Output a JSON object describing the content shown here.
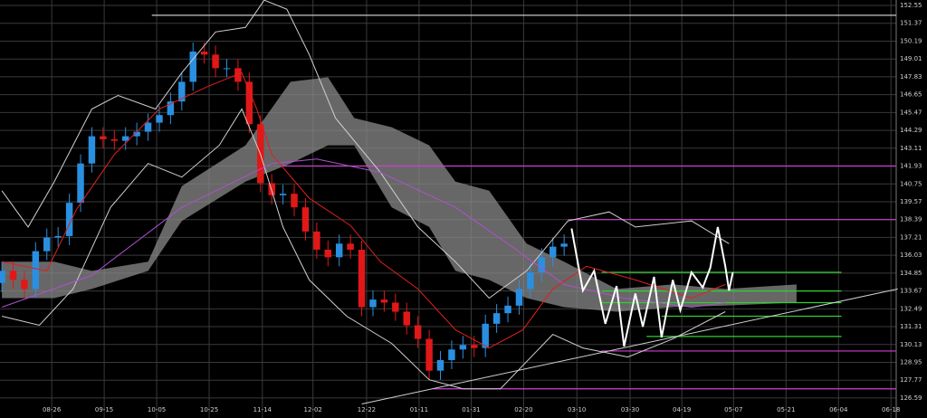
{
  "chart_data": {
    "type": "candlestick",
    "x": [
      0,
      3,
      6,
      9,
      12,
      15,
      18,
      21,
      24,
      27,
      30,
      33,
      36,
      39,
      42,
      45,
      48,
      51,
      54,
      57,
      60,
      63,
      66,
      69,
      72,
      75,
      78,
      81,
      84,
      87,
      90,
      93,
      96,
      99,
      102,
      105,
      108,
      111,
      114,
      117,
      120,
      123,
      126,
      129,
      132,
      135,
      138,
      141,
      144,
      147,
      150
    ],
    "open": [
      134.2,
      135.0,
      134.4,
      133.8,
      136.3,
      137.2,
      137.3,
      139.5,
      142.1,
      143.9,
      143.7,
      143.6,
      143.9,
      144.2,
      144.8,
      145.3,
      146.2,
      147.5,
      149.5,
      149.3,
      148.4,
      148.4,
      147.5,
      144.7,
      140.8,
      140.0,
      140.1,
      139.2,
      137.6,
      136.4,
      135.9,
      136.8,
      136.4,
      132.6,
      133.1,
      132.9,
      132.3,
      131.4,
      130.5,
      128.4,
      129.1,
      129.8,
      130.1,
      129.9,
      131.5,
      132.2,
      132.7,
      133.8,
      134.9,
      135.9,
      136.6
    ],
    "high": [
      135.6,
      135.6,
      135.0,
      136.9,
      137.8,
      137.9,
      140.1,
      142.7,
      144.5,
      144.5,
      144.3,
      144.5,
      144.8,
      145.4,
      145.9,
      146.8,
      148.1,
      150.1,
      150.1,
      149.9,
      149.0,
      149.0,
      148.1,
      145.3,
      141.4,
      140.7,
      140.7,
      139.8,
      138.2,
      137.0,
      137.4,
      137.4,
      137.0,
      133.7,
      133.7,
      133.5,
      132.9,
      132.0,
      131.1,
      129.7,
      130.4,
      130.7,
      130.7,
      132.1,
      132.8,
      133.3,
      134.4,
      135.5,
      136.5,
      137.2,
      137.4
    ],
    "low": [
      133.6,
      133.8,
      133.2,
      133.2,
      135.7,
      136.6,
      136.7,
      138.9,
      141.5,
      143.1,
      143.0,
      143.0,
      143.3,
      143.6,
      144.2,
      144.7,
      145.6,
      146.9,
      148.7,
      147.8,
      147.8,
      146.9,
      144.1,
      140.2,
      139.4,
      139.4,
      138.6,
      137.0,
      135.8,
      135.3,
      135.3,
      135.8,
      132.0,
      132.0,
      132.3,
      131.7,
      130.8,
      129.9,
      127.8,
      127.8,
      128.5,
      129.2,
      129.3,
      129.3,
      130.9,
      131.6,
      132.1,
      133.2,
      134.3,
      135.3,
      136.0
    ],
    "close": [
      135.0,
      134.4,
      133.8,
      136.3,
      137.2,
      137.3,
      139.5,
      142.1,
      143.9,
      143.7,
      143.6,
      143.9,
      144.2,
      144.8,
      145.3,
      146.2,
      147.5,
      149.5,
      149.3,
      148.4,
      148.4,
      147.5,
      144.7,
      140.8,
      140.0,
      140.1,
      139.2,
      137.6,
      136.4,
      135.9,
      136.8,
      136.4,
      132.6,
      133.1,
      132.9,
      132.3,
      131.4,
      130.5,
      128.4,
      129.1,
      129.8,
      130.1,
      129.9,
      131.5,
      132.2,
      132.7,
      133.8,
      134.9,
      135.9,
      136.6,
      136.8
    ],
    "up_color": "#2a8fe0",
    "down_color": "#e01818",
    "cloud": {
      "color": "#8a8a8a",
      "x": [
        0,
        14,
        24,
        39,
        48,
        65,
        77,
        87,
        94,
        104,
        114,
        121,
        130,
        140,
        150,
        164,
        179,
        193,
        212
      ],
      "upper": [
        135.6,
        135.6,
        135.0,
        135.6,
        140.6,
        143.3,
        147.5,
        147.8,
        145.1,
        144.5,
        143.3,
        140.9,
        140.3,
        136.8,
        135.6,
        133.8,
        134.1,
        133.8,
        134.1
      ],
      "lower": [
        133.2,
        133.2,
        133.8,
        135.0,
        138.3,
        140.9,
        142.1,
        143.3,
        143.3,
        139.2,
        137.9,
        135.0,
        134.4,
        133.2,
        132.6,
        132.3,
        132.6,
        132.7,
        132.9
      ]
    },
    "overlays": [
      {
        "color": "#d0d0d0",
        "x": [
          0,
          7,
          14,
          24,
          31,
          41,
          48,
          57,
          65,
          70,
          76,
          82,
          89,
          101,
          111,
          121,
          130,
          140,
          151,
          162,
          169,
          184,
          194
        ],
        "values": [
          140.3,
          137.9,
          140.9,
          145.7,
          146.6,
          145.7,
          148.1,
          150.8,
          151.1,
          152.9,
          152.3,
          149.3,
          145.1,
          141.5,
          137.9,
          135.6,
          133.2,
          135.0,
          138.3,
          138.9,
          137.9,
          138.3,
          136.8
        ]
      },
      {
        "color": "#d0d0d0",
        "x": [
          0,
          10,
          19,
          29,
          39,
          48,
          58,
          64,
          69,
          75,
          82,
          92,
          104,
          114,
          123,
          133,
          140,
          147,
          155,
          167,
          179,
          193
        ],
        "values": [
          132.0,
          131.4,
          133.8,
          139.2,
          142.1,
          141.2,
          143.3,
          145.7,
          142.7,
          137.9,
          134.4,
          132.0,
          130.2,
          127.8,
          127.2,
          127.2,
          129.0,
          130.8,
          129.9,
          129.3,
          130.5,
          132.3
        ]
      },
      {
        "color": "#b050d0",
        "x": [
          0,
          24,
          48,
          72,
          84,
          101,
          121,
          135,
          150,
          166,
          184,
          193
        ],
        "values": [
          132.6,
          134.7,
          139.2,
          142.1,
          142.4,
          141.5,
          139.2,
          136.8,
          134.1,
          133.2,
          132.6,
          132.9
        ]
      },
      {
        "color": "#e02020",
        "x": [
          0,
          12,
          20,
          30,
          42,
          55,
          64,
          68,
          72,
          82,
          93,
          101,
          111,
          121,
          130,
          139,
          147,
          156,
          169,
          184,
          193
        ],
        "values": [
          135.6,
          135.0,
          139.1,
          142.7,
          145.7,
          147.2,
          148.1,
          145.7,
          142.7,
          139.8,
          138.0,
          135.6,
          133.8,
          131.1,
          129.9,
          131.1,
          133.8,
          135.3,
          134.4,
          133.2,
          134.1
        ]
      },
      {
        "color": "#ffffff",
        "x": [
          152,
          155,
          158,
          161,
          164,
          166,
          169,
          171,
          174,
          176,
          179,
          181,
          184,
          187,
          189,
          191,
          193,
          194,
          195
        ],
        "values": [
          137.8,
          133.7,
          135.0,
          131.5,
          134.0,
          130.0,
          133.5,
          131.3,
          134.6,
          130.6,
          134.4,
          132.4,
          134.9,
          133.9,
          135.2,
          137.9,
          135.3,
          133.7,
          134.9
        ]
      }
    ],
    "hlines": [
      {
        "value": 151.9,
        "from": 40,
        "to": 238.6,
        "color": "#c8c8c8"
      },
      {
        "value": 141.93,
        "from": 75,
        "to": 238.6,
        "color": "#d040d0"
      },
      {
        "value": 138.39,
        "from": 151,
        "to": 238.6,
        "color": "#d040d0"
      },
      {
        "value": 134.9,
        "from": 160,
        "to": 224,
        "color": "#30d030"
      },
      {
        "value": 133.67,
        "from": 160,
        "to": 224,
        "color": "#30d030"
      },
      {
        "value": 132.9,
        "from": 160,
        "to": 224,
        "color": "#30d030"
      },
      {
        "value": 132.0,
        "from": 176,
        "to": 224,
        "color": "#30d030"
      },
      {
        "value": 130.66,
        "from": 172,
        "to": 224,
        "color": "#30d030"
      },
      {
        "value": 129.7,
        "from": 160,
        "to": 238.6,
        "color": "#d040d0"
      },
      {
        "value": 127.2,
        "from": 115,
        "to": 238.6,
        "color": "#d040d0"
      }
    ],
    "trendline": {
      "color": "#d0d0d0",
      "x": [
        96,
        239
      ],
      "values": [
        126.2,
        133.8
      ]
    },
    "xlim": [
      -0.5,
      238.6
    ],
    "ylim": [
      125.27,
      152.91
    ],
    "xticks": [
      {
        "value": 13.3,
        "label": "08-26"
      },
      {
        "value": 27.3,
        "label": "09-15"
      },
      {
        "value": 41.3,
        "label": "10-05"
      },
      {
        "value": 55.3,
        "label": "10-25"
      },
      {
        "value": 69.5,
        "label": "11-14"
      },
      {
        "value": 83.0,
        "label": "12-02"
      },
      {
        "value": 97.3,
        "label": "12-22"
      },
      {
        "value": 111.3,
        "label": "01-11"
      },
      {
        "value": 125.2,
        "label": "01-31"
      },
      {
        "value": 139.2,
        "label": "02-20"
      },
      {
        "value": 153.4,
        "label": "03-10"
      },
      {
        "value": 167.6,
        "label": "03-30"
      },
      {
        "value": 181.4,
        "label": "04-19"
      },
      {
        "value": 195.2,
        "label": "05-07"
      },
      {
        "value": 209.2,
        "label": "05-21"
      },
      {
        "value": 223.2,
        "label": "06-04"
      },
      {
        "value": 237.2,
        "label": "06-18"
      }
    ],
    "yticks": [
      152.55,
      151.37,
      150.19,
      149.01,
      147.83,
      146.65,
      145.47,
      144.29,
      143.11,
      141.93,
      140.75,
      139.57,
      138.39,
      137.21,
      136.03,
      134.85,
      133.67,
      132.49,
      131.31,
      130.13,
      128.95,
      127.77,
      126.59
    ],
    "grid": true
  }
}
